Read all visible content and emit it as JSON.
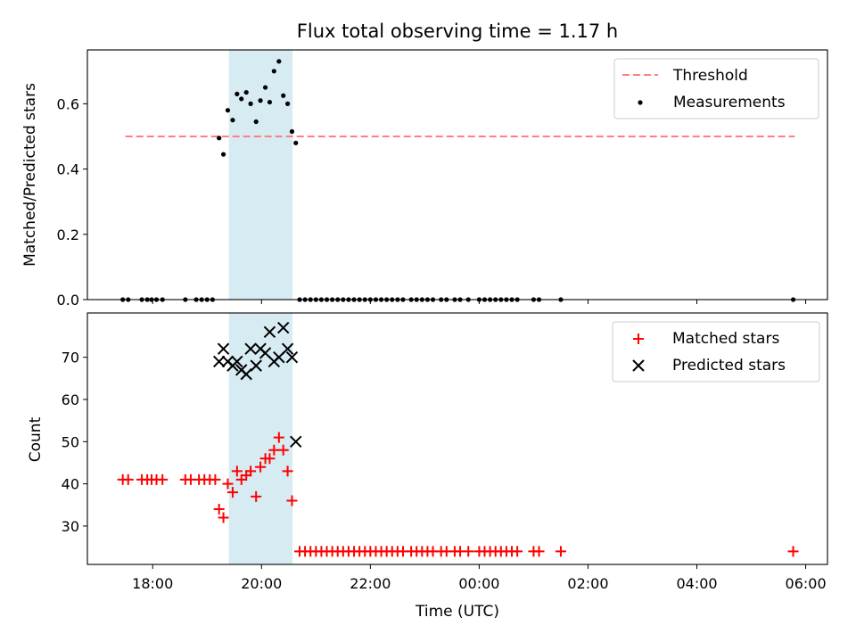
{
  "chart_data": [
    {
      "type": "scatter",
      "title": "Flux total observing time = 1.17 h",
      "xlabel": "",
      "ylabel": "Matched/Predicted stars",
      "xlim": [
        16.8,
        30.4
      ],
      "ylim": [
        0,
        0.765
      ],
      "yticks": [
        0.0,
        0.2,
        0.4,
        0.6
      ],
      "ytick_labels": [
        "0.0",
        "0.2",
        "0.4",
        "0.6"
      ],
      "grid": false,
      "legend_position": "top-right",
      "shaded_x_range": [
        19.4,
        20.57
      ],
      "shaded_color": "#add8e6",
      "threshold": {
        "name": "Threshold",
        "y": 0.5,
        "x": [
          17.5,
          29.8
        ],
        "color": "#ff7f7f"
      },
      "series": [
        {
          "name": "Measurements",
          "color": "#000000",
          "points": [
            [
              17.45,
              0
            ],
            [
              17.55,
              0
            ],
            [
              17.8,
              0
            ],
            [
              17.9,
              0
            ],
            [
              17.98,
              0
            ],
            [
              18.07,
              0
            ],
            [
              18.18,
              0
            ],
            [
              18.6,
              0
            ],
            [
              18.8,
              0
            ],
            [
              18.9,
              0
            ],
            [
              19.0,
              0
            ],
            [
              19.1,
              0
            ],
            [
              19.22,
              0.495
            ],
            [
              19.3,
              0.445
            ],
            [
              19.38,
              0.58
            ],
            [
              19.47,
              0.55
            ],
            [
              19.55,
              0.63
            ],
            [
              19.63,
              0.615
            ],
            [
              19.72,
              0.635
            ],
            [
              19.8,
              0.6
            ],
            [
              19.9,
              0.545
            ],
            [
              19.98,
              0.61
            ],
            [
              20.07,
              0.65
            ],
            [
              20.15,
              0.605
            ],
            [
              20.23,
              0.7
            ],
            [
              20.32,
              0.73
            ],
            [
              20.4,
              0.625
            ],
            [
              20.48,
              0.6
            ],
            [
              20.56,
              0.515
            ],
            [
              20.63,
              0.48
            ],
            [
              20.7,
              0
            ],
            [
              20.8,
              0
            ],
            [
              20.9,
              0
            ],
            [
              21.0,
              0
            ],
            [
              21.1,
              0
            ],
            [
              21.2,
              0
            ],
            [
              21.3,
              0
            ],
            [
              21.4,
              0
            ],
            [
              21.5,
              0
            ],
            [
              21.6,
              0
            ],
            [
              21.7,
              0
            ],
            [
              21.8,
              0
            ],
            [
              21.9,
              0
            ],
            [
              22.0,
              0
            ],
            [
              22.1,
              0
            ],
            [
              22.2,
              0
            ],
            [
              22.3,
              0
            ],
            [
              22.4,
              0
            ],
            [
              22.5,
              0
            ],
            [
              22.6,
              0
            ],
            [
              22.75,
              0
            ],
            [
              22.85,
              0
            ],
            [
              22.95,
              0
            ],
            [
              23.05,
              0
            ],
            [
              23.15,
              0
            ],
            [
              23.3,
              0
            ],
            [
              23.4,
              0
            ],
            [
              23.55,
              0
            ],
            [
              23.65,
              0
            ],
            [
              23.8,
              0
            ],
            [
              24.0,
              0
            ],
            [
              24.1,
              0
            ],
            [
              24.2,
              0
            ],
            [
              24.3,
              0
            ],
            [
              24.4,
              0
            ],
            [
              24.5,
              0
            ],
            [
              24.6,
              0
            ],
            [
              24.7,
              0
            ],
            [
              25.0,
              0
            ],
            [
              25.1,
              0
            ],
            [
              25.5,
              0
            ],
            [
              29.77,
              0
            ]
          ]
        }
      ]
    },
    {
      "type": "scatter",
      "title": "",
      "xlabel": "Time (UTC)",
      "ylabel": "Count",
      "xlim": [
        16.8,
        30.4
      ],
      "ylim": [
        20.9,
        80.5
      ],
      "yticks": [
        30,
        40,
        50,
        60,
        70
      ],
      "ytick_labels": [
        "30",
        "40",
        "50",
        "60",
        "70"
      ],
      "xticks": [
        18,
        20,
        22,
        24,
        26,
        28,
        30
      ],
      "xtick_labels": [
        "18:00",
        "20:00",
        "22:00",
        "00:00",
        "02:00",
        "04:00",
        "06:00"
      ],
      "grid": false,
      "legend_position": "top-right",
      "shaded_x_range": [
        19.4,
        20.57
      ],
      "shaded_color": "#add8e6",
      "series": [
        {
          "name": "Matched stars",
          "color": "#ff0000",
          "marker": "plus",
          "points": [
            [
              17.45,
              41
            ],
            [
              17.55,
              41
            ],
            [
              17.8,
              41
            ],
            [
              17.9,
              41
            ],
            [
              17.98,
              41
            ],
            [
              18.07,
              41
            ],
            [
              18.18,
              41
            ],
            [
              18.6,
              41
            ],
            [
              18.7,
              41
            ],
            [
              18.85,
              41
            ],
            [
              18.95,
              41
            ],
            [
              19.05,
              41
            ],
            [
              19.15,
              41
            ],
            [
              19.22,
              34
            ],
            [
              19.3,
              32
            ],
            [
              19.38,
              40
            ],
            [
              19.47,
              38
            ],
            [
              19.55,
              43
            ],
            [
              19.63,
              41
            ],
            [
              19.72,
              42
            ],
            [
              19.8,
              43
            ],
            [
              19.9,
              37
            ],
            [
              19.98,
              44
            ],
            [
              20.07,
              46
            ],
            [
              20.15,
              46
            ],
            [
              20.23,
              48
            ],
            [
              20.32,
              51
            ],
            [
              20.4,
              48
            ],
            [
              20.48,
              43
            ],
            [
              20.56,
              36
            ],
            [
              20.7,
              24
            ],
            [
              20.8,
              24
            ],
            [
              20.9,
              24
            ],
            [
              21.0,
              24
            ],
            [
              21.1,
              24
            ],
            [
              21.2,
              24
            ],
            [
              21.3,
              24
            ],
            [
              21.4,
              24
            ],
            [
              21.5,
              24
            ],
            [
              21.6,
              24
            ],
            [
              21.7,
              24
            ],
            [
              21.8,
              24
            ],
            [
              21.9,
              24
            ],
            [
              22.0,
              24
            ],
            [
              22.1,
              24
            ],
            [
              22.2,
              24
            ],
            [
              22.3,
              24
            ],
            [
              22.4,
              24
            ],
            [
              22.5,
              24
            ],
            [
              22.6,
              24
            ],
            [
              22.75,
              24
            ],
            [
              22.85,
              24
            ],
            [
              22.95,
              24
            ],
            [
              23.05,
              24
            ],
            [
              23.15,
              24
            ],
            [
              23.3,
              24
            ],
            [
              23.4,
              24
            ],
            [
              23.55,
              24
            ],
            [
              23.65,
              24
            ],
            [
              23.8,
              24
            ],
            [
              24.0,
              24
            ],
            [
              24.1,
              24
            ],
            [
              24.2,
              24
            ],
            [
              24.3,
              24
            ],
            [
              24.4,
              24
            ],
            [
              24.5,
              24
            ],
            [
              24.6,
              24
            ],
            [
              24.7,
              24
            ],
            [
              25.0,
              24
            ],
            [
              25.1,
              24
            ],
            [
              25.5,
              24
            ],
            [
              29.77,
              24
            ]
          ]
        },
        {
          "name": "Predicted stars",
          "color": "#000000",
          "marker": "x",
          "points": [
            [
              19.22,
              69
            ],
            [
              19.3,
              72
            ],
            [
              19.38,
              69
            ],
            [
              19.47,
              68
            ],
            [
              19.55,
              69
            ],
            [
              19.63,
              67
            ],
            [
              19.72,
              66
            ],
            [
              19.8,
              72
            ],
            [
              19.9,
              68
            ],
            [
              19.98,
              72
            ],
            [
              20.07,
              71
            ],
            [
              20.15,
              76
            ],
            [
              20.23,
              69
            ],
            [
              20.32,
              70
            ],
            [
              20.4,
              77
            ],
            [
              20.48,
              72
            ],
            [
              20.56,
              70
            ],
            [
              20.63,
              50
            ]
          ]
        }
      ]
    }
  ]
}
